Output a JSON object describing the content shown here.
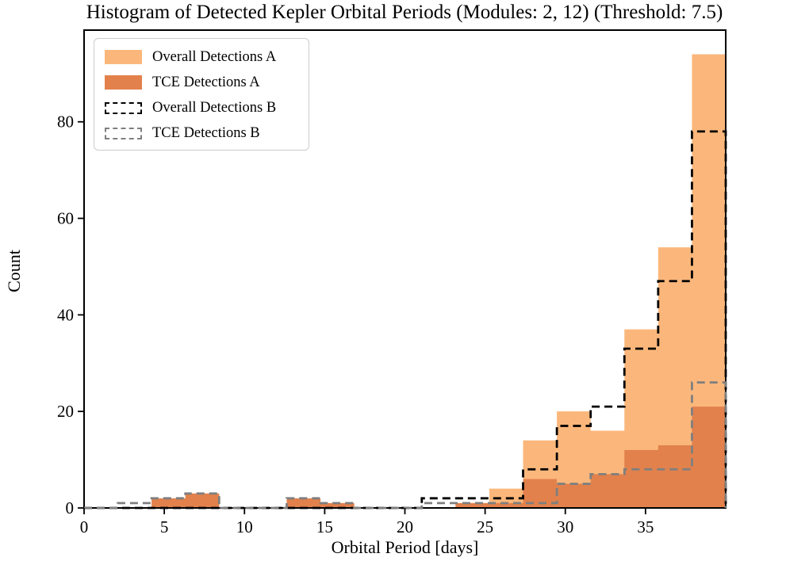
{
  "title": "Histogram of Detected Kepler Orbital Periods (Modules: 2, 12) (Threshold: 7.5)",
  "legend": {
    "items": [
      {
        "label": "Overall Detections A",
        "swatch": "filled",
        "color": "#FBB77B"
      },
      {
        "label": "TCE Detections A",
        "swatch": "filled",
        "color": "#E2814C"
      },
      {
        "label": "Overall Detections B",
        "swatch": "dashed",
        "color": "#000000"
      },
      {
        "label": "TCE Detections B",
        "swatch": "dashed",
        "color": "#7f7f7f"
      }
    ]
  },
  "chart_data": {
    "type": "histogram",
    "title": "Histogram of Detected Kepler Orbital Periods (Modules: 2, 12) (Threshold: 7.5)",
    "xlabel": "Orbital Period [days]",
    "ylabel": "Count",
    "xlim": [
      0,
      40
    ],
    "ylim": [
      0,
      99
    ],
    "xticks": [
      0,
      5,
      10,
      15,
      20,
      25,
      30,
      35
    ],
    "yticks": [
      0,
      20,
      40,
      60,
      80
    ],
    "grid": false,
    "legend_position": "upper left",
    "bin_edges": [
      0,
      2.105,
      4.211,
      6.316,
      8.421,
      10.526,
      12.632,
      14.737,
      16.842,
      18.947,
      21.053,
      23.158,
      25.263,
      27.368,
      29.474,
      31.579,
      33.684,
      35.789,
      37.895,
      40
    ],
    "series": [
      {
        "name": "Overall Detections A",
        "style": "filled",
        "color": "#FBB77B",
        "values": [
          0,
          0,
          2,
          3,
          0,
          0,
          2,
          1,
          0,
          0,
          0,
          1,
          4,
          14,
          20,
          16,
          37,
          54,
          94
        ]
      },
      {
        "name": "TCE Detections A",
        "style": "filled",
        "color": "#E2814C",
        "values": [
          0,
          0,
          2,
          3,
          0,
          0,
          2,
          1,
          0,
          0,
          0,
          1,
          1,
          6,
          5,
          7,
          12,
          13,
          21
        ]
      },
      {
        "name": "Overall Detections B",
        "style": "dashed",
        "color": "#000000",
        "values": [
          0,
          0,
          0,
          0,
          0,
          0,
          0,
          0,
          0,
          0,
          2,
          2,
          2,
          8,
          17,
          21,
          33,
          47,
          78
        ]
      },
      {
        "name": "TCE Detections B",
        "style": "dashed",
        "color": "#7f7f7f",
        "values": [
          0,
          1,
          2,
          3,
          0,
          0,
          2,
          1,
          0,
          0,
          1,
          1,
          1,
          1,
          5,
          7,
          8,
          8,
          26
        ]
      }
    ]
  }
}
